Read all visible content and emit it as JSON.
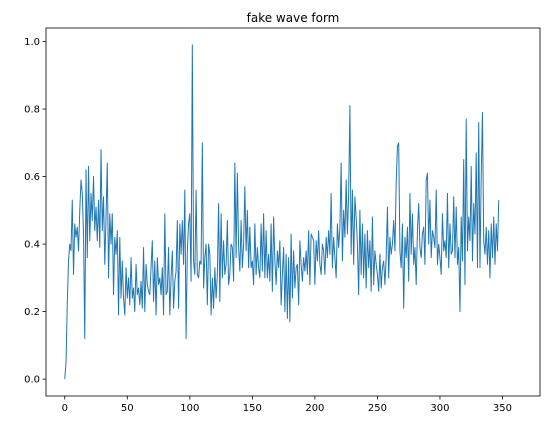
{
  "chart_data": {
    "type": "line",
    "title": "fake wave form",
    "xlabel": "",
    "ylabel": "",
    "xlim": [
      -15,
      380
    ],
    "ylim": [
      -0.05,
      1.04
    ],
    "xticks": [
      0,
      50,
      100,
      150,
      200,
      250,
      300,
      350
    ],
    "yticks": [
      0.0,
      0.2,
      0.4,
      0.6,
      0.8,
      1.0
    ],
    "xtick_labels": [
      "0",
      "50",
      "100",
      "150",
      "200",
      "250",
      "300",
      "350"
    ],
    "ytick_labels": [
      "0.0",
      "0.2",
      "0.4",
      "0.6",
      "0.8",
      "1.0"
    ],
    "grid": false,
    "legend": "none",
    "series": [
      {
        "color": "#1f77b4",
        "x_start": 0,
        "x_step": 1,
        "values": [
          0.0,
          0.05,
          0.22,
          0.35,
          0.4,
          0.38,
          0.53,
          0.31,
          0.46,
          0.42,
          0.45,
          0.38,
          0.5,
          0.59,
          0.55,
          0.43,
          0.12,
          0.62,
          0.36,
          0.63,
          0.41,
          0.55,
          0.47,
          0.6,
          0.44,
          0.51,
          0.41,
          0.53,
          0.39,
          0.68,
          0.44,
          0.54,
          0.34,
          0.48,
          0.64,
          0.3,
          0.49,
          0.4,
          0.49,
          0.25,
          0.42,
          0.37,
          0.44,
          0.19,
          0.42,
          0.24,
          0.35,
          0.24,
          0.19,
          0.33,
          0.24,
          0.3,
          0.22,
          0.36,
          0.24,
          0.27,
          0.2,
          0.34,
          0.25,
          0.27,
          0.22,
          0.29,
          0.21,
          0.39,
          0.2,
          0.34,
          0.28,
          0.26,
          0.25,
          0.33,
          0.41,
          0.23,
          0.35,
          0.19,
          0.36,
          0.28,
          0.3,
          0.25,
          0.33,
          0.19,
          0.49,
          0.25,
          0.26,
          0.39,
          0.19,
          0.3,
          0.38,
          0.21,
          0.29,
          0.32,
          0.47,
          0.21,
          0.46,
          0.37,
          0.47,
          0.34,
          0.56,
          0.12,
          0.38,
          0.46,
          0.49,
          0.29,
          0.99,
          0.35,
          0.31,
          0.56,
          0.31,
          0.3,
          0.35,
          0.34,
          0.7,
          0.27,
          0.36,
          0.4,
          0.22,
          0.4,
          0.37,
          0.19,
          0.3,
          0.21,
          0.33,
          0.24,
          0.31,
          0.52,
          0.23,
          0.49,
          0.3,
          0.41,
          0.31,
          0.34,
          0.47,
          0.28,
          0.31,
          0.4,
          0.39,
          0.29,
          0.64,
          0.36,
          0.61,
          0.39,
          0.32,
          0.47,
          0.33,
          0.4,
          0.57,
          0.38,
          0.5,
          0.33,
          0.45,
          0.33,
          0.35,
          0.28,
          0.46,
          0.31,
          0.39,
          0.33,
          0.3,
          0.46,
          0.32,
          0.49,
          0.3,
          0.44,
          0.3,
          0.37,
          0.29,
          0.46,
          0.26,
          0.48,
          0.35,
          0.28,
          0.38,
          0.33,
          0.41,
          0.22,
          0.31,
          0.39,
          0.2,
          0.37,
          0.18,
          0.36,
          0.17,
          0.43,
          0.24,
          0.38,
          0.27,
          0.33,
          0.34,
          0.22,
          0.41,
          0.34,
          0.29,
          0.36,
          0.32,
          0.38,
          0.31,
          0.44,
          0.28,
          0.43,
          0.42,
          0.41,
          0.28,
          0.41,
          0.35,
          0.44,
          0.34,
          0.31,
          0.4,
          0.38,
          0.31,
          0.42,
          0.36,
          0.44,
          0.37,
          0.55,
          0.33,
          0.42,
          0.36,
          0.3,
          0.46,
          0.39,
          0.45,
          0.64,
          0.35,
          0.5,
          0.42,
          0.59,
          0.43,
          0.55,
          0.81,
          0.37,
          0.56,
          0.34,
          0.54,
          0.48,
          0.4,
          0.25,
          0.5,
          0.31,
          0.46,
          0.3,
          0.43,
          0.27,
          0.44,
          0.33,
          0.41,
          0.26,
          0.48,
          0.28,
          0.38,
          0.34,
          0.31,
          0.26,
          0.37,
          0.27,
          0.33,
          0.35,
          0.28,
          0.36,
          0.51,
          0.3,
          0.42,
          0.37,
          0.4,
          0.47,
          0.38,
          0.58,
          0.69,
          0.7,
          0.38,
          0.33,
          0.46,
          0.21,
          0.42,
          0.36,
          0.45,
          0.29,
          0.55,
          0.37,
          0.49,
          0.34,
          0.39,
          0.28,
          0.44,
          0.52,
          0.39,
          0.36,
          0.43,
          0.45,
          0.34,
          0.59,
          0.61,
          0.4,
          0.53,
          0.36,
          0.44,
          0.42,
          0.39,
          0.56,
          0.34,
          0.4,
          0.36,
          0.31,
          0.49,
          0.38,
          0.41,
          0.36,
          0.55,
          0.33,
          0.46,
          0.37,
          0.38,
          0.54,
          0.36,
          0.51,
          0.34,
          0.39,
          0.2,
          0.48,
          0.35,
          0.65,
          0.28,
          0.77,
          0.38,
          0.48,
          0.41,
          0.63,
          0.35,
          0.52,
          0.43,
          0.67,
          0.33,
          0.76,
          0.33,
          0.6,
          0.79,
          0.41,
          0.37,
          0.45,
          0.34,
          0.44,
          0.3,
          0.46,
          0.36,
          0.48,
          0.34,
          0.46,
          0.38,
          0.53
        ]
      }
    ]
  }
}
